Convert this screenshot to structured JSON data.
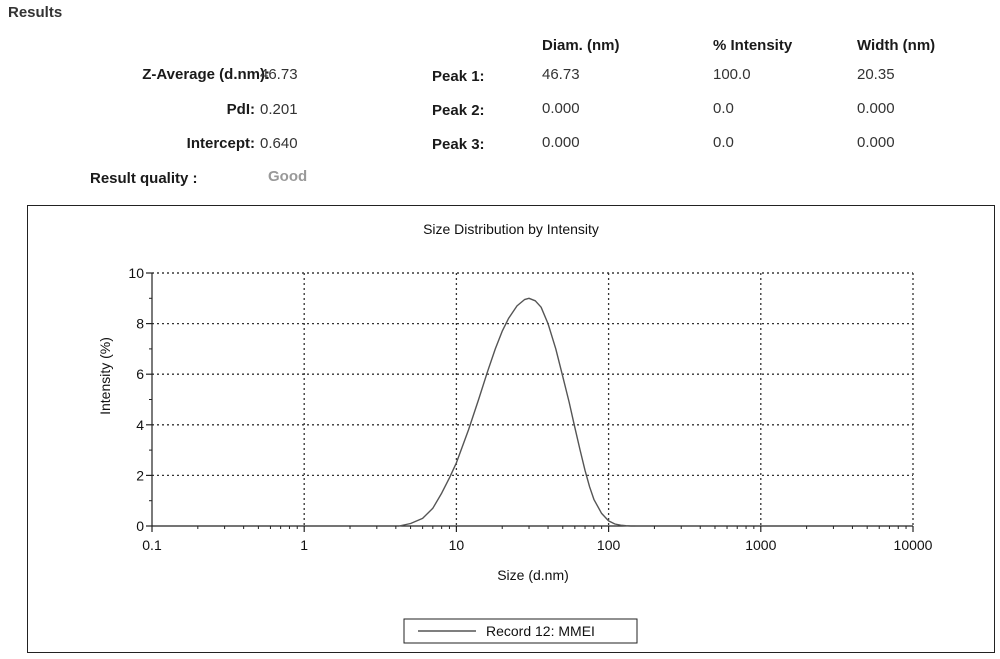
{
  "results": {
    "heading": "Results",
    "z_average": {
      "label": "Z-Average (d.nm):",
      "value": "46.73"
    },
    "pdi": {
      "label": "PdI:",
      "value": "0.201"
    },
    "intercept": {
      "label": "Intercept:",
      "value": "0.640"
    },
    "quality": {
      "label": "Result quality :",
      "value": "Good"
    },
    "columns": [
      "Diam. (nm)",
      "% Intensity",
      "Width (nm)"
    ],
    "peaks": [
      {
        "label": "Peak 1:",
        "diam": "46.73",
        "intensity": "100.0",
        "width": "20.35"
      },
      {
        "label": "Peak 2:",
        "diam": "0.000",
        "intensity": "0.0",
        "width": "0.000"
      },
      {
        "label": "Peak 3:",
        "diam": "0.000",
        "intensity": "0.0",
        "width": "0.000"
      }
    ]
  },
  "chart_data": {
    "type": "line",
    "title": "Size Distribution by Intensity",
    "xlabel": "Size (d.nm)",
    "ylabel": "Intensity (%)",
    "x_scale": "log",
    "xlim": [
      0.1,
      10000
    ],
    "ylim": [
      0,
      10
    ],
    "x_ticks": [
      "0.1",
      "1",
      "10",
      "100",
      "1000",
      "10000"
    ],
    "y_ticks": [
      "0",
      "2",
      "4",
      "6",
      "8",
      "10"
    ],
    "grid": true,
    "legend_position": "bottom-center",
    "series": [
      {
        "name": "Record 12: MMEI",
        "color": "#555555",
        "x": [
          4.2,
          5,
          6,
          7,
          8,
          9,
          10,
          12,
          14,
          16,
          18,
          20,
          22,
          25,
          28,
          30,
          33,
          36,
          40,
          45,
          50,
          55,
          60,
          65,
          70,
          75,
          80,
          90,
          100,
          110,
          120,
          130,
          140,
          150
        ],
        "y": [
          0.0,
          0.1,
          0.3,
          0.7,
          1.3,
          1.9,
          2.5,
          3.8,
          5.0,
          6.1,
          7.0,
          7.7,
          8.2,
          8.7,
          8.95,
          9.0,
          8.9,
          8.65,
          8.0,
          7.0,
          5.9,
          4.9,
          3.9,
          3.0,
          2.2,
          1.55,
          1.05,
          0.5,
          0.2,
          0.08,
          0.03,
          0.01,
          0.0,
          0.0
        ]
      }
    ]
  }
}
